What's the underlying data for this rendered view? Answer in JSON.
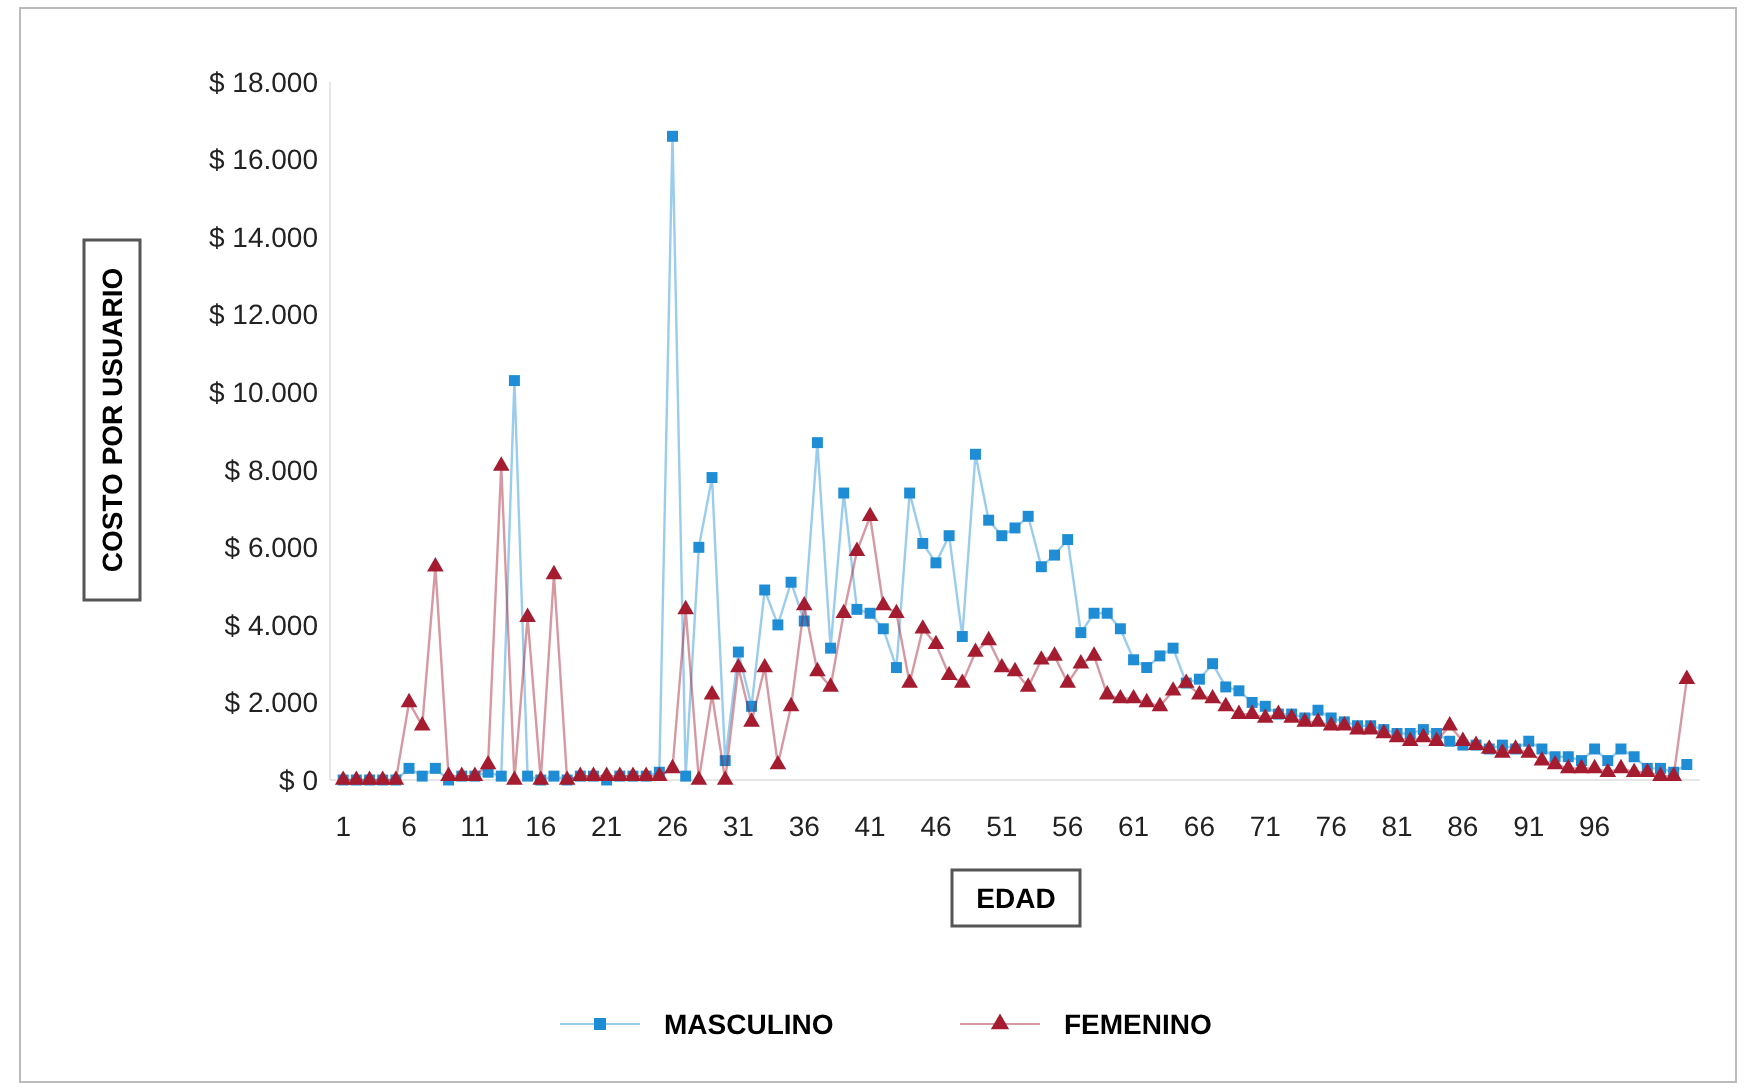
{
  "chart_data": {
    "type": "line",
    "xlabel": "EDAD",
    "ylabel": "COSTO POR USUARIO",
    "x": [
      1,
      2,
      3,
      4,
      5,
      6,
      7,
      8,
      9,
      10,
      11,
      12,
      13,
      14,
      15,
      16,
      17,
      18,
      19,
      20,
      21,
      22,
      23,
      24,
      25,
      26,
      27,
      28,
      29,
      30,
      31,
      32,
      33,
      34,
      35,
      36,
      37,
      38,
      39,
      40,
      41,
      42,
      43,
      44,
      45,
      46,
      47,
      48,
      49,
      50,
      51,
      52,
      53,
      54,
      55,
      56,
      57,
      58,
      59,
      60,
      61,
      62,
      63,
      64,
      65,
      66,
      67,
      68,
      69,
      70,
      71,
      72,
      73,
      74,
      75,
      76,
      77,
      78,
      79,
      80,
      81,
      82,
      83,
      84,
      85,
      86,
      87,
      88,
      89,
      90,
      91,
      92,
      93,
      94,
      95,
      96,
      97,
      98,
      99,
      100,
      101,
      102,
      103
    ],
    "xlim": [
      0,
      104
    ],
    "xticks": [
      1,
      6,
      11,
      16,
      21,
      26,
      31,
      36,
      41,
      46,
      51,
      56,
      61,
      66,
      71,
      76,
      81,
      86,
      91,
      96
    ],
    "ylim": [
      0,
      18000
    ],
    "yticks": [
      {
        "value": 0,
        "label": "$ 0"
      },
      {
        "value": 2000,
        "label": "$ 2.000"
      },
      {
        "value": 4000,
        "label": "$ 4.000"
      },
      {
        "value": 6000,
        "label": "$ 6.000"
      },
      {
        "value": 8000,
        "label": "$ 8.000"
      },
      {
        "value": 10000,
        "label": "$ 10.000"
      },
      {
        "value": 12000,
        "label": "$ 12.000"
      },
      {
        "value": 14000,
        "label": "$ 14.000"
      },
      {
        "value": 16000,
        "label": "$ 16.000"
      },
      {
        "value": 18000,
        "label": "$ 18.000"
      }
    ],
    "legend": "bottom",
    "line_style": "solid",
    "series": [
      {
        "name": "MASCULINO",
        "color": "#1f8dd6",
        "marker": "square",
        "values": [
          0,
          0,
          0,
          0,
          0,
          300,
          100,
          300,
          0,
          100,
          100,
          200,
          100,
          10300,
          100,
          0,
          100,
          0,
          100,
          100,
          0,
          100,
          100,
          100,
          200,
          16600,
          100,
          6000,
          7800,
          500,
          3300,
          1900,
          4900,
          4000,
          5100,
          4100,
          8700,
          3400,
          7400,
          4400,
          4300,
          3900,
          2900,
          7400,
          6100,
          5600,
          6300,
          3700,
          8400,
          6700,
          6300,
          6500,
          6800,
          5500,
          5800,
          6200,
          3800,
          4300,
          4300,
          3900,
          3100,
          2900,
          3200,
          3400,
          2500,
          2600,
          3000,
          2400,
          2300,
          2000,
          1900,
          1700,
          1700,
          1600,
          1800,
          1600,
          1500,
          1400,
          1400,
          1300,
          1200,
          1200,
          1300,
          1200,
          1000,
          900,
          900,
          800,
          900,
          800,
          1000,
          800,
          600,
          600,
          500,
          800,
          500,
          800,
          600,
          300,
          300,
          200,
          400
        ]
      },
      {
        "name": "FEMENINO",
        "color": "#a51c30",
        "marker": "triangle",
        "values": [
          0,
          0,
          0,
          0,
          0,
          2000,
          1400,
          5500,
          100,
          100,
          100,
          400,
          8100,
          0,
          4200,
          0,
          5300,
          0,
          100,
          100,
          100,
          100,
          100,
          100,
          100,
          300,
          4400,
          0,
          2200,
          0,
          2900,
          1500,
          2900,
          400,
          1900,
          4500,
          2800,
          2400,
          4300,
          5900,
          6800,
          4500,
          4300,
          2500,
          3900,
          3500,
          2700,
          2500,
          3300,
          3600,
          2900,
          2800,
          2400,
          3100,
          3200,
          2500,
          3000,
          3200,
          2200,
          2100,
          2100,
          2000,
          1900,
          2300,
          2500,
          2200,
          2100,
          1900,
          1700,
          1700,
          1600,
          1700,
          1600,
          1500,
          1500,
          1400,
          1400,
          1300,
          1300,
          1200,
          1100,
          1000,
          1100,
          1000,
          1400,
          1000,
          900,
          800,
          700,
          800,
          700,
          500,
          400,
          300,
          300,
          300,
          200,
          300,
          200,
          200,
          100,
          100,
          2600
        ]
      }
    ]
  }
}
